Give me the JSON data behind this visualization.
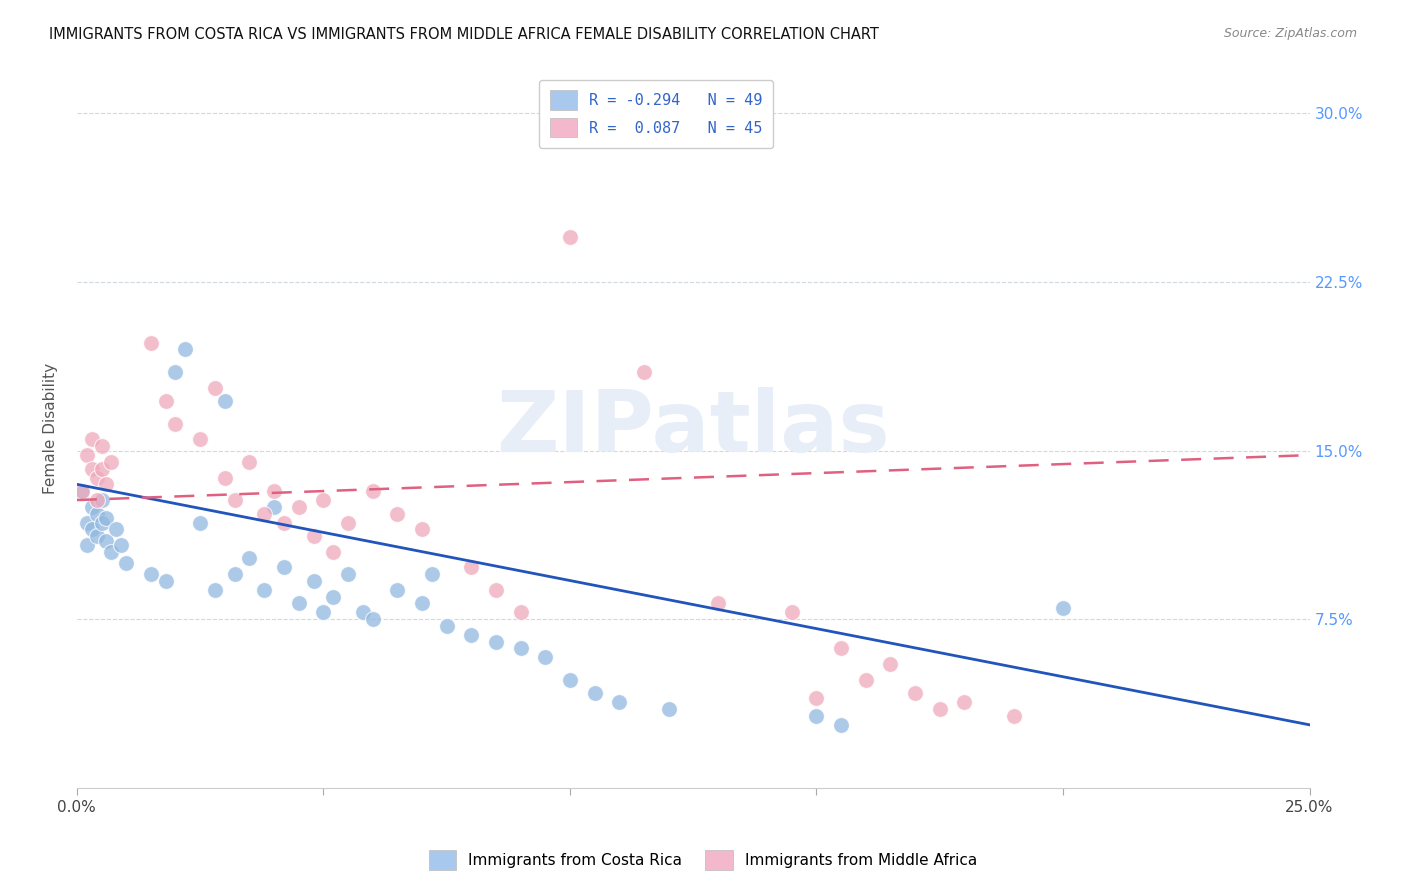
{
  "title": "IMMIGRANTS FROM COSTA RICA VS IMMIGRANTS FROM MIDDLE AFRICA FEMALE DISABILITY CORRELATION CHART",
  "source": "Source: ZipAtlas.com",
  "ylabel": "Female Disability",
  "ytick_values": [
    0.0,
    0.075,
    0.15,
    0.225,
    0.3
  ],
  "ytick_labels": [
    "",
    "7.5%",
    "15.0%",
    "22.5%",
    "30.0%"
  ],
  "xlim": [
    0.0,
    0.25
  ],
  "ylim": [
    0.0,
    0.32
  ],
  "blue_scatter_color": "#90b8e0",
  "pink_scatter_color": "#f0a8bc",
  "line_blue_color": "#2255bb",
  "line_pink_color": "#e06080",
  "legend_patch_blue": "#a8c8ee",
  "legend_patch_pink": "#f4b8cc",
  "legend_text_color": "#3366cc",
  "ytick_color": "#5599ff",
  "watermark": "ZIPatlas",
  "watermark_color": "#e8eef8",
  "blue_line_start_y": 0.135,
  "blue_line_end_y": 0.028,
  "pink_line_start_y": 0.128,
  "pink_line_end_y": 0.148,
  "costa_rica_points": [
    [
      0.001,
      0.131
    ],
    [
      0.002,
      0.118
    ],
    [
      0.002,
      0.108
    ],
    [
      0.003,
      0.125
    ],
    [
      0.003,
      0.115
    ],
    [
      0.004,
      0.122
    ],
    [
      0.004,
      0.112
    ],
    [
      0.005,
      0.128
    ],
    [
      0.005,
      0.118
    ],
    [
      0.006,
      0.12
    ],
    [
      0.006,
      0.11
    ],
    [
      0.007,
      0.105
    ],
    [
      0.008,
      0.115
    ],
    [
      0.009,
      0.108
    ],
    [
      0.01,
      0.1
    ],
    [
      0.015,
      0.095
    ],
    [
      0.018,
      0.092
    ],
    [
      0.02,
      0.185
    ],
    [
      0.022,
      0.195
    ],
    [
      0.025,
      0.118
    ],
    [
      0.028,
      0.088
    ],
    [
      0.03,
      0.172
    ],
    [
      0.032,
      0.095
    ],
    [
      0.035,
      0.102
    ],
    [
      0.038,
      0.088
    ],
    [
      0.04,
      0.125
    ],
    [
      0.042,
      0.098
    ],
    [
      0.045,
      0.082
    ],
    [
      0.048,
      0.092
    ],
    [
      0.05,
      0.078
    ],
    [
      0.052,
      0.085
    ],
    [
      0.055,
      0.095
    ],
    [
      0.058,
      0.078
    ],
    [
      0.06,
      0.075
    ],
    [
      0.065,
      0.088
    ],
    [
      0.07,
      0.082
    ],
    [
      0.072,
      0.095
    ],
    [
      0.075,
      0.072
    ],
    [
      0.08,
      0.068
    ],
    [
      0.085,
      0.065
    ],
    [
      0.09,
      0.062
    ],
    [
      0.095,
      0.058
    ],
    [
      0.1,
      0.048
    ],
    [
      0.105,
      0.042
    ],
    [
      0.11,
      0.038
    ],
    [
      0.12,
      0.035
    ],
    [
      0.15,
      0.032
    ],
    [
      0.155,
      0.028
    ],
    [
      0.2,
      0.08
    ]
  ],
  "middle_africa_points": [
    [
      0.001,
      0.132
    ],
    [
      0.002,
      0.148
    ],
    [
      0.003,
      0.142
    ],
    [
      0.003,
      0.155
    ],
    [
      0.004,
      0.138
    ],
    [
      0.004,
      0.128
    ],
    [
      0.005,
      0.152
    ],
    [
      0.005,
      0.142
    ],
    [
      0.006,
      0.135
    ],
    [
      0.007,
      0.145
    ],
    [
      0.015,
      0.198
    ],
    [
      0.018,
      0.172
    ],
    [
      0.02,
      0.162
    ],
    [
      0.025,
      0.155
    ],
    [
      0.028,
      0.178
    ],
    [
      0.03,
      0.138
    ],
    [
      0.032,
      0.128
    ],
    [
      0.035,
      0.145
    ],
    [
      0.038,
      0.122
    ],
    [
      0.04,
      0.132
    ],
    [
      0.042,
      0.118
    ],
    [
      0.045,
      0.125
    ],
    [
      0.048,
      0.112
    ],
    [
      0.05,
      0.128
    ],
    [
      0.052,
      0.105
    ],
    [
      0.055,
      0.118
    ],
    [
      0.06,
      0.132
    ],
    [
      0.065,
      0.122
    ],
    [
      0.07,
      0.115
    ],
    [
      0.08,
      0.098
    ],
    [
      0.085,
      0.088
    ],
    [
      0.09,
      0.078
    ],
    [
      0.1,
      0.245
    ],
    [
      0.115,
      0.185
    ],
    [
      0.13,
      0.082
    ],
    [
      0.145,
      0.078
    ],
    [
      0.15,
      0.04
    ],
    [
      0.155,
      0.062
    ],
    [
      0.16,
      0.048
    ],
    [
      0.165,
      0.055
    ],
    [
      0.17,
      0.042
    ],
    [
      0.175,
      0.035
    ],
    [
      0.18,
      0.038
    ],
    [
      0.19,
      0.032
    ]
  ]
}
